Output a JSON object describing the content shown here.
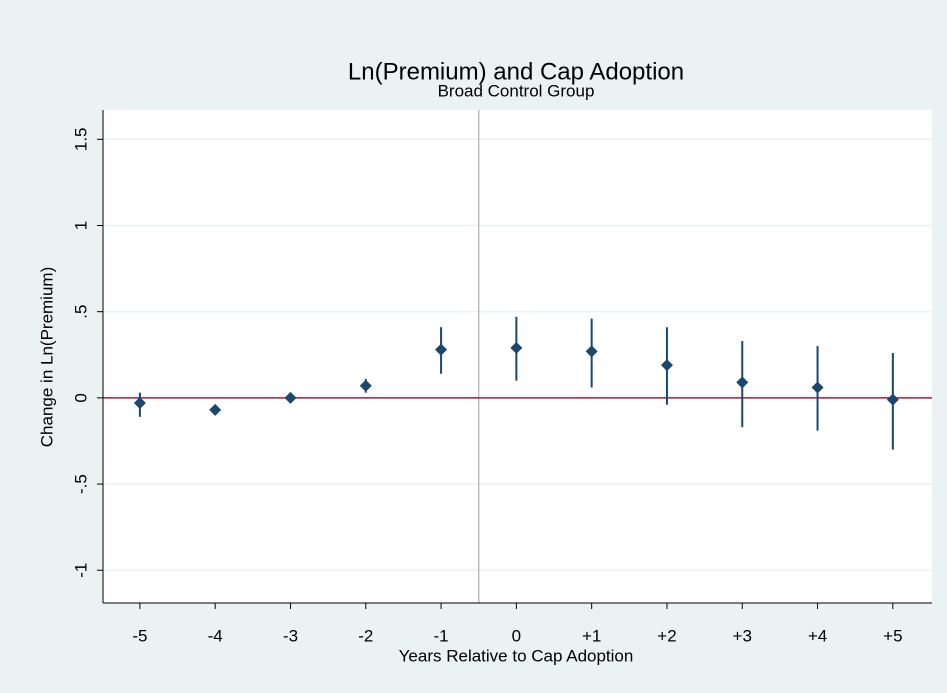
{
  "chart_data": {
    "type": "errorbar",
    "title": "Ln(Premium) and Cap Adoption",
    "subtitle": "Broad Control Group",
    "x_label": "Years Relative to Cap Adoption",
    "y_label": "Change in Ln(Premium)",
    "x": [
      -5,
      -4,
      -3,
      -2,
      -1,
      0,
      1,
      2,
      3,
      4,
      5
    ],
    "series": [
      {
        "color": "#1a476f",
        "values": [
          -0.03,
          -0.07,
          0.0,
          0.07,
          0.28,
          0.29,
          0.27,
          0.19,
          0.09,
          0.06,
          -0.01
        ],
        "lower": [
          -0.11,
          -0.1,
          -0.02,
          0.03,
          0.14,
          0.1,
          0.06,
          -0.04,
          -0.17,
          -0.19,
          -0.3
        ],
        "upper": [
          0.03,
          -0.04,
          0.02,
          0.11,
          0.41,
          0.47,
          0.46,
          0.41,
          0.33,
          0.3,
          0.26
        ]
      }
    ],
    "xlim": [
      -5.49,
      5.52
    ],
    "ylim": [
      -1.19,
      1.67
    ],
    "xticks": [
      -5,
      -4,
      -3,
      -2,
      -1,
      0,
      {
        "value": 1,
        "label": "+1"
      },
      {
        "value": 2,
        "label": "+2"
      },
      {
        "value": 3,
        "label": "+3"
      },
      {
        "value": 4,
        "label": "+4"
      },
      {
        "value": 5,
        "label": "+5"
      }
    ],
    "yticks": [
      -1,
      {
        "value": -0.5,
        "label": "-.5"
      },
      0,
      {
        "value": 0.5,
        "label": ".5"
      },
      1,
      1.5
    ],
    "grid": true,
    "reference_y": {
      "value": 0,
      "color": "#b5173a"
    },
    "reference_x": {
      "value": -0.5,
      "color": "#bdbdbd"
    }
  }
}
